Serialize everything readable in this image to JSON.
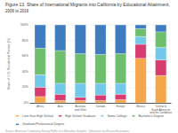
{
  "chart_data": {
    "type": "bar",
    "title": "Figure 13. Share of International Migrants into California by Educational Attainment,",
    "subtitle": "2006 to 2016",
    "ylabel": "Share of U.S. Residential Permits (%)",
    "categories": [
      "Africa",
      "Asia",
      "Australia\nand Other",
      "Canada",
      "Europe",
      "Mexico",
      "Central &\nSouth American\nand the Caribbean"
    ],
    "series": [
      {
        "name": "Less than High School",
        "color": "#f5a54a",
        "values": [
          0.08,
          0.03,
          0.03,
          0.03,
          0.04,
          0.57,
          0.35
        ]
      },
      {
        "name": "High School Graduate",
        "color": "#d63c6e",
        "values": [
          0.12,
          0.08,
          0.04,
          0.07,
          0.07,
          0.18,
          0.2
        ]
      },
      {
        "name": "Some College",
        "color": "#72c8e8",
        "values": [
          0.16,
          0.14,
          0.18,
          0.15,
          0.14,
          0.1,
          0.16
        ]
      },
      {
        "name": "Bachelor's Degree",
        "color": "#6dbf6d",
        "values": [
          0.34,
          0.42,
          0.38,
          0.37,
          0.38,
          0.1,
          0.2
        ]
      },
      {
        "name": "Graduate/Professional Degree",
        "color": "#3e7bbf",
        "values": [
          0.3,
          0.33,
          0.37,
          0.38,
          0.37,
          0.05,
          0.09
        ]
      }
    ],
    "ylim": [
      0,
      1.0
    ],
    "yticks": [
      {
        "value": 0,
        "label": "0%"
      },
      {
        "value": 0.2,
        "label": "20%"
      },
      {
        "value": 0.4,
        "label": "40%"
      },
      {
        "value": 0.6,
        "label": "60%"
      },
      {
        "value": 0.8,
        "label": "80%"
      },
      {
        "value": 1.0,
        "label": "100%"
      }
    ],
    "stacked": true,
    "grid": true,
    "legend": "bottom",
    "annotations": [
      "Source: American Community Survey Public Use Microdata Samples. Tabulations by Beacon Economics."
    ]
  }
}
